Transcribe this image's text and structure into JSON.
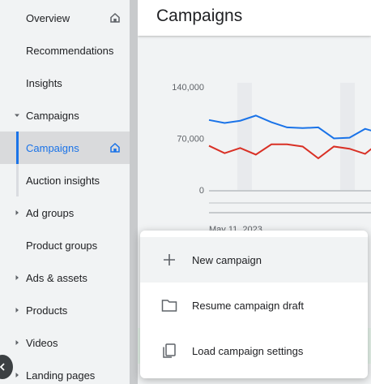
{
  "sidebar": {
    "items": [
      {
        "label": "Overview",
        "caret": false,
        "home": true
      },
      {
        "label": "Recommendations",
        "caret": false,
        "home": false
      },
      {
        "label": "Insights",
        "caret": false,
        "home": false
      },
      {
        "label": "Campaigns",
        "caret": "down",
        "home": false
      },
      {
        "label": "Campaigns",
        "caret": false,
        "home": true,
        "active": true
      },
      {
        "label": "Auction insights",
        "caret": false,
        "home": false
      },
      {
        "label": "Ad groups",
        "caret": "right",
        "home": false
      },
      {
        "label": "Product groups",
        "caret": false,
        "home": false
      },
      {
        "label": "Ads & assets",
        "caret": "right",
        "home": false
      },
      {
        "label": "Products",
        "caret": "right",
        "home": false
      },
      {
        "label": "Videos",
        "caret": "right",
        "home": false
      },
      {
        "label": "Landing pages",
        "caret": "right",
        "home": false
      }
    ]
  },
  "header": {
    "title": "Campaigns"
  },
  "chart_data": {
    "type": "line",
    "y_ticks": [
      "140,000",
      "70,000",
      "0"
    ],
    "ylim": [
      0,
      140000
    ],
    "x_label_partial": "May 11, 2023",
    "series": [
      {
        "color": "#1a73e8",
        "values": [
          95000,
          91000,
          94000,
          101000,
          92000,
          85000,
          84000,
          85000,
          70000,
          71000,
          83000,
          77000
        ]
      },
      {
        "color": "#d93025",
        "values": [
          60000,
          50000,
          57000,
          48000,
          62000,
          62000,
          59000,
          43000,
          59000,
          56000,
          49000,
          66000
        ]
      }
    ],
    "shaded_bands": true
  },
  "menu": {
    "items": [
      {
        "label": "New campaign",
        "icon": "plus-icon"
      },
      {
        "label": "Resume campaign draft",
        "icon": "folder-icon"
      },
      {
        "label": "Load campaign settings",
        "icon": "copy-icon"
      }
    ]
  },
  "colors": {
    "accent": "#1a73e8",
    "series_red": "#d93025",
    "sidebar_bg": "#f1f3f4"
  }
}
